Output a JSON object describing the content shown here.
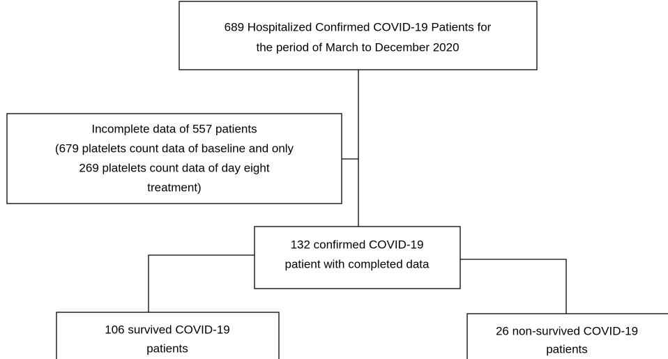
{
  "nodes": [
    {
      "lines": [
        "689 Hospitalized Confirmed COVID-19 Patients for",
        "the period of March to December 2020"
      ]
    },
    {
      "lines": [
        "Incomplete data of 557 patients",
        "(679 platelets count data of baseline and only",
        "269 platelets count data of day eight",
        "treatment)"
      ]
    },
    {
      "lines": [
        "132 confirmed COVID-19",
        "patient with completed data"
      ]
    },
    {
      "lines": [
        "106 survived COVID-19",
        "patients"
      ]
    },
    {
      "lines": [
        "26 non-survived COVID-19",
        "patients"
      ]
    }
  ]
}
